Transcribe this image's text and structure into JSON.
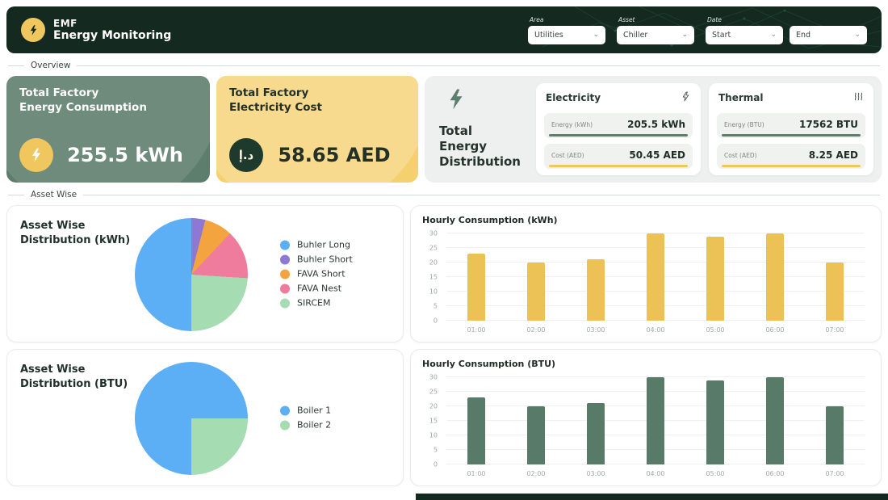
{
  "app": {
    "brand": "EMF",
    "brand_subtitle": "Energy Monitoring"
  },
  "icons": {
    "chevron_down": "⌄",
    "dirham": "د.إ"
  },
  "filters": {
    "area": {
      "label": "Area",
      "value": "Utilities"
    },
    "asset": {
      "label": "Asset",
      "value": "Chiller"
    },
    "date": {
      "label": "Date",
      "start": "Start",
      "end": "End"
    }
  },
  "sections": {
    "overview": "Overview",
    "asset_wise": "Asset Wise"
  },
  "kpi_energy": {
    "title1": "Total Factory",
    "title2": "Energy Consumption",
    "value": "255.5 kWh"
  },
  "kpi_cost": {
    "title1": "Total Factory",
    "title2": "Electricity Cost",
    "value": "58.65 AED",
    "symbol": "د.إ"
  },
  "distribution": {
    "title1": "Total",
    "title2": "Energy",
    "title3": "Distribution",
    "electricity": {
      "title": "Electricity",
      "rows": [
        {
          "label": "Energy (kWh)",
          "value": "205.5 kWh",
          "accent": "#5e7e6d"
        },
        {
          "label": "Cost (AED)",
          "value": "50.45 AED",
          "accent": "#f0c75e"
        }
      ]
    },
    "thermal": {
      "title": "Thermal",
      "rows": [
        {
          "label": "Energy (BTU)",
          "value": "17562 BTU",
          "accent": "#5e7e6d"
        },
        {
          "label": "Cost (AED)",
          "value": "8.25 AED",
          "accent": "#f0c75e"
        }
      ]
    }
  },
  "colors": {
    "header_bg": "#142920",
    "accent_green": "#5e7e6d",
    "accent_yellow": "#f0c75e"
  },
  "chart_data": [
    {
      "type": "pie",
      "title": "Asset Wise Distribution (kWh)",
      "title_line1": "Asset Wise",
      "title_line2": "Distribution (kWh)",
      "slices": [
        {
          "label": "Buhler Long",
          "value": 50,
          "color": "#5caef5"
        },
        {
          "label": "Buhler Short",
          "value": 4,
          "color": "#8f77d4"
        },
        {
          "label": "FAVA Short",
          "value": 8,
          "color": "#f3a43f"
        },
        {
          "label": "FAVA Nest",
          "value": 14,
          "color": "#ef7b9d"
        },
        {
          "label": "SIRCEM",
          "value": 24,
          "color": "#a6dcb2"
        }
      ],
      "start_deg": 180,
      "legend_position": "right"
    },
    {
      "type": "pie",
      "title": "Asset Wise Distribution (BTU)",
      "title_line1": "Asset Wise",
      "title_line2": "Distribution (BTU)",
      "slices": [
        {
          "label": "Boiler 1",
          "value": 75,
          "color": "#5caef5"
        },
        {
          "label": "Boiler 2",
          "value": 25,
          "color": "#a6dcb2"
        }
      ],
      "start_deg": 180,
      "legend_position": "right"
    },
    {
      "type": "bar",
      "title": "Hourly Consumption (kWh)",
      "categories": [
        "01:00",
        "02:00",
        "03:00",
        "04:00",
        "05:00",
        "06:00",
        "07:00"
      ],
      "values": [
        23,
        20,
        21,
        30,
        29,
        30,
        20
      ],
      "bar_color": "#ecc257",
      "xlabel": "",
      "ylabel": "",
      "ylim": [
        0,
        30
      ],
      "yticks": [
        0,
        5,
        10,
        15,
        20,
        25,
        30
      ],
      "grid": true
    },
    {
      "type": "bar",
      "title": "Hourly Consumption (BTU)",
      "categories": [
        "01:00",
        "02:00",
        "03:00",
        "04:00",
        "05:00",
        "06:00",
        "07:00"
      ],
      "values": [
        23,
        20,
        21,
        30,
        29,
        30,
        20
      ],
      "bar_color": "#587a68",
      "xlabel": "",
      "ylabel": "",
      "ylim": [
        0,
        30
      ],
      "yticks": [
        0,
        5,
        10,
        15,
        20,
        25,
        30
      ],
      "grid": true
    }
  ]
}
